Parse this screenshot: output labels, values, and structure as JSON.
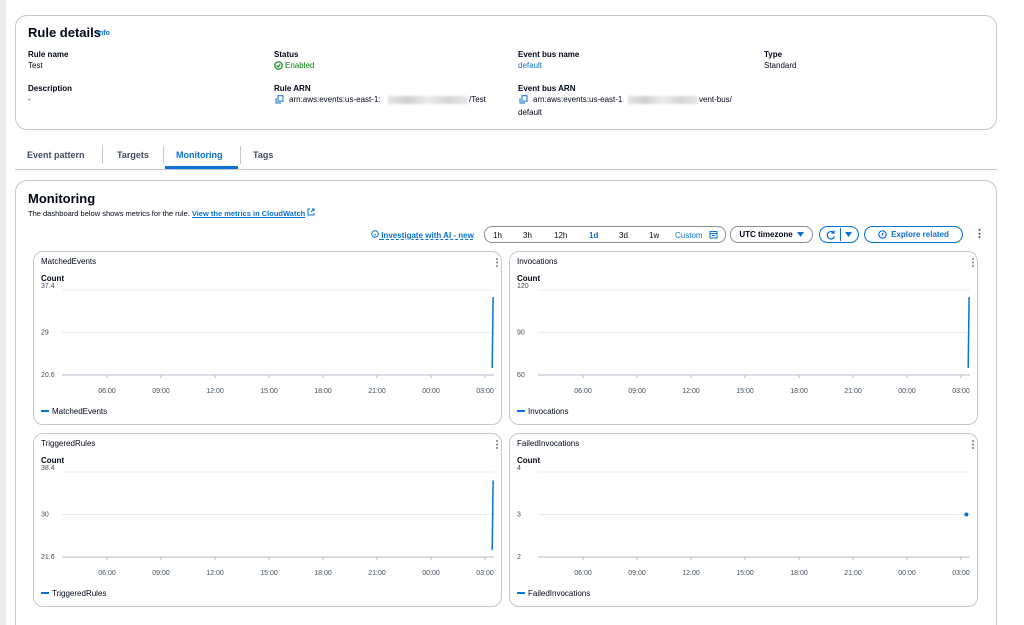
{
  "rule_details": {
    "title": "Rule details",
    "info": "Info",
    "rule_name": {
      "label": "Rule name",
      "value": "Test"
    },
    "description": {
      "label": "Description",
      "value": "-"
    },
    "status": {
      "label": "Status",
      "value": "Enabled"
    },
    "rule_arn": {
      "label": "Rule ARN",
      "value_start": "arn:aws:events:us-east-1:",
      "value_end": "/Test"
    },
    "event_bus_name": {
      "label": "Event bus name",
      "value": "default"
    },
    "event_bus_arn": {
      "label": "Event bus ARN",
      "value_start": "arn:aws:events:us-east-1",
      "value_end": "vent-bus/",
      "value_line2": "default"
    },
    "type": {
      "label": "Type",
      "value": "Standard"
    }
  },
  "tabs": [
    "Event pattern",
    "Targets",
    "Monitoring",
    "Tags"
  ],
  "monitoring": {
    "title": "Monitoring",
    "description": "The dashboard below shows metrics for the rule.",
    "link": "View the metrics in CloudWatch",
    "investigate": "Investigate with AI - new",
    "time_ranges": [
      "1h",
      "3h",
      "12h",
      "1d",
      "3d",
      "1w",
      "Custom"
    ],
    "timezone": "UTC timezone",
    "explore": "Explore related"
  },
  "chart_data": [
    {
      "type": "line",
      "title": "MatchedEvents",
      "y_label": "Count",
      "x": [
        27.4,
        27.45
      ],
      "series": [
        {
          "name": "MatchedEvents",
          "color": "#0972d3",
          "values": [
            22,
            36
          ]
        }
      ],
      "xlim": [
        3.5,
        27.5
      ],
      "xticks": [
        {
          "value": 6,
          "label": "06:00"
        },
        {
          "value": 9,
          "label": "09:00"
        },
        {
          "value": 12,
          "label": "12:00"
        },
        {
          "value": 15,
          "label": "15:00"
        },
        {
          "value": 18,
          "label": "18:00"
        },
        {
          "value": 21,
          "label": "21:00"
        },
        {
          "value": 24,
          "label": "00:00"
        },
        {
          "value": 27,
          "label": "03:00"
        }
      ],
      "ylim": [
        20.6,
        37.4
      ],
      "yticks": [
        20.6,
        29,
        37.4
      ],
      "grid": true
    },
    {
      "type": "line",
      "title": "Invocations",
      "y_label": "Count",
      "x": [
        27.4,
        27.45
      ],
      "series": [
        {
          "name": "Invocations",
          "color": "#0972d3",
          "values": [
            65,
            115
          ]
        }
      ],
      "xlim": [
        3.5,
        27.5
      ],
      "xticks": [
        {
          "value": 6,
          "label": "06:00"
        },
        {
          "value": 9,
          "label": "09:00"
        },
        {
          "value": 12,
          "label": "12:00"
        },
        {
          "value": 15,
          "label": "15:00"
        },
        {
          "value": 18,
          "label": "18:00"
        },
        {
          "value": 21,
          "label": "21:00"
        },
        {
          "value": 24,
          "label": "00:00"
        },
        {
          "value": 27,
          "label": "03:00"
        }
      ],
      "ylim": [
        60,
        120
      ],
      "yticks": [
        60,
        90,
        120
      ],
      "grid": true
    },
    {
      "type": "line",
      "title": "TriggeredRules",
      "y_label": "Count",
      "x": [
        27.4,
        27.45
      ],
      "series": [
        {
          "name": "TriggeredRules",
          "color": "#0972d3",
          "values": [
            23,
            36.7
          ]
        }
      ],
      "xlim": [
        3.5,
        27.5
      ],
      "xticks": [
        {
          "value": 6,
          "label": "06:00"
        },
        {
          "value": 9,
          "label": "09:00"
        },
        {
          "value": 12,
          "label": "12:00"
        },
        {
          "value": 15,
          "label": "15:00"
        },
        {
          "value": 18,
          "label": "18:00"
        },
        {
          "value": 21,
          "label": "21:00"
        },
        {
          "value": 24,
          "label": "00:00"
        },
        {
          "value": 27,
          "label": "03:00"
        }
      ],
      "ylim": [
        21.6,
        38.4
      ],
      "yticks": [
        21.6,
        30,
        38.4
      ],
      "grid": true
    },
    {
      "type": "line",
      "title": "FailedInvocations",
      "y_label": "Count",
      "x": [
        27.3
      ],
      "series": [
        {
          "name": "FailedInvocations",
          "color": "#0972d3",
          "values": [
            3
          ]
        }
      ],
      "xlim": [
        3.5,
        27.5
      ],
      "xticks": [
        {
          "value": 6,
          "label": "06:00"
        },
        {
          "value": 9,
          "label": "09:00"
        },
        {
          "value": 12,
          "label": "12:00"
        },
        {
          "value": 15,
          "label": "15:00"
        },
        {
          "value": 18,
          "label": "18:00"
        },
        {
          "value": 21,
          "label": "21:00"
        },
        {
          "value": 24,
          "label": "00:00"
        },
        {
          "value": 27,
          "label": "03:00"
        }
      ],
      "ylim": [
        2,
        4
      ],
      "yticks": [
        2,
        3,
        4
      ],
      "grid": true
    }
  ]
}
